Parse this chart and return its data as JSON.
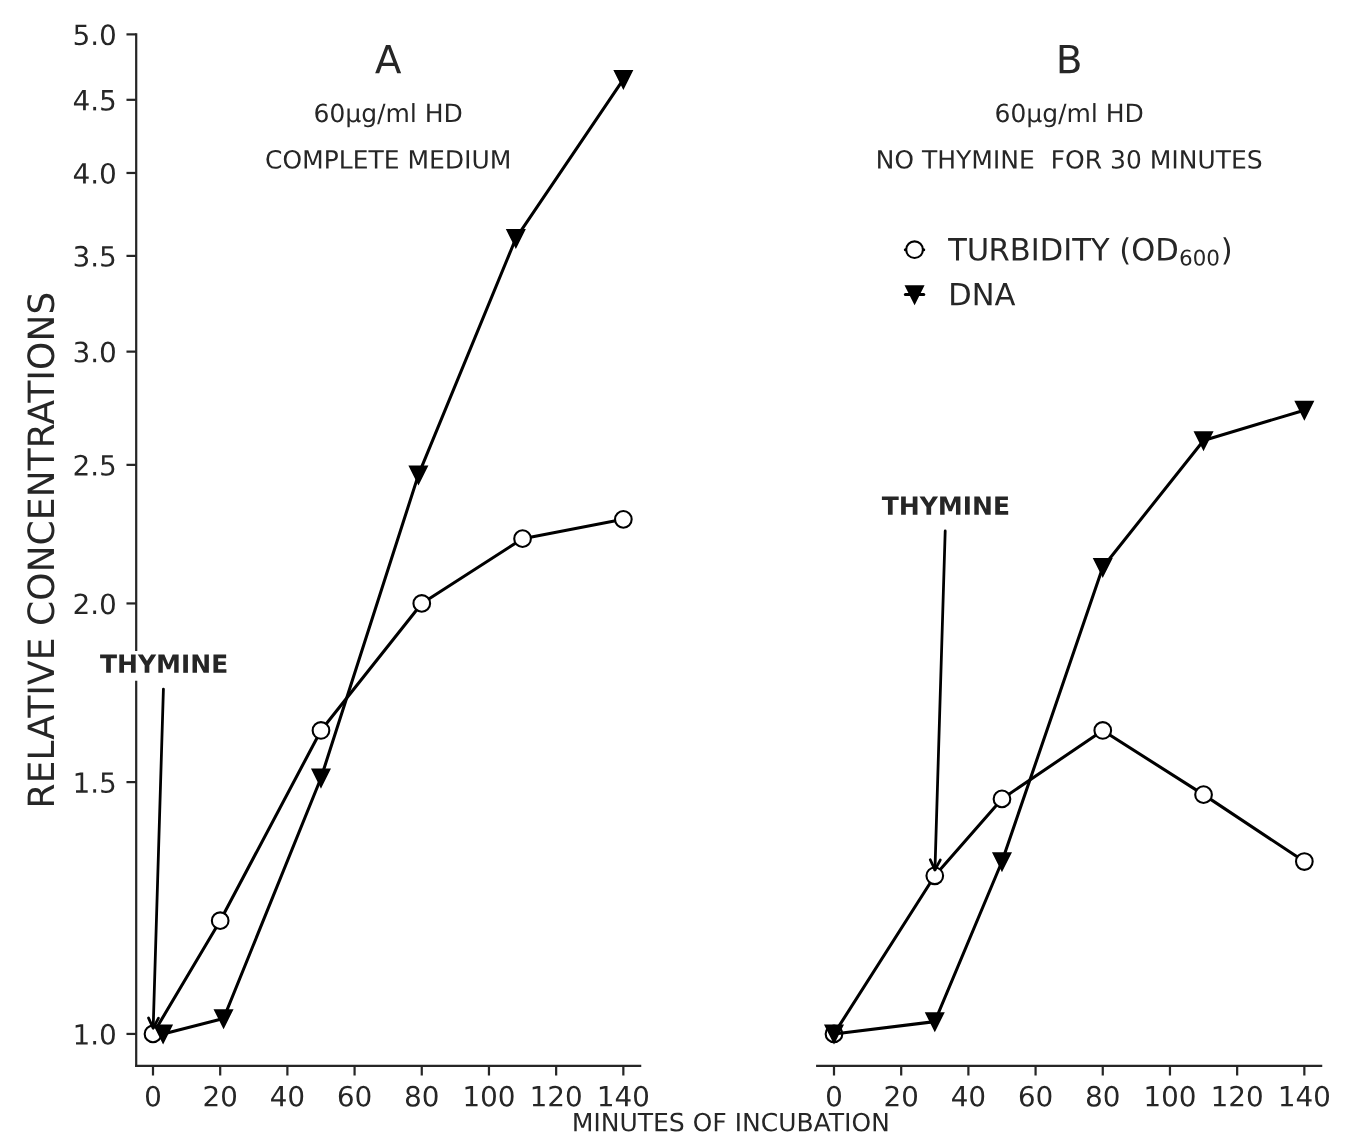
{
  "chart_data": [
    {
      "type": "line",
      "title": "A",
      "subtitle": "60μg/ml HD",
      "ylabel": "RELATIVE CONCENTRATIONS",
      "xlabel": "MINUTES OF INCUBATION",
      "log": "y",
      "grid": false,
      "legend": false,
      "xlim": [
        -5,
        145
      ],
      "xticks": [
        0,
        20,
        40,
        60,
        80,
        100,
        120,
        140
      ],
      "ylim": [
        0.95,
        5.0
      ],
      "yticks": [
        {
          "value": 1.0,
          "label": "1.0"
        },
        1.5,
        {
          "value": 2.0,
          "label": "2.0"
        },
        2.5,
        {
          "value": 3.0,
          "label": "3.0"
        },
        3.5,
        {
          "value": 4.0,
          "label": "4.0"
        },
        4.5,
        {
          "value": 5.0,
          "label": "5.0"
        }
      ],
      "series": [
        {
          "color": "#000000",
          "marker": "circle",
          "x": [
            0,
            20,
            50,
            80,
            110,
            140
          ],
          "values": [
            1.0,
            1.2,
            1.63,
            2.0,
            2.22,
            2.29
          ]
        },
        {
          "color": "#000000",
          "marker": "triangle",
          "x": [
            3,
            21,
            50,
            79,
            108,
            140
          ],
          "values": [
            1.0,
            1.025,
            1.51,
            2.46,
            3.6,
            4.65
          ]
        }
      ],
      "annotations": [
        "COMPLETE MEDIUM",
        {
          "text": "THYMINE",
          "x": 0,
          "y": 1.0
        }
      ]
    },
    {
      "type": "line",
      "title": "B",
      "subtitle": "60μg/ml HD",
      "log": "y",
      "grid": false,
      "legend": "top",
      "tick_labels": "x",
      "xlim": [
        -5,
        145
      ],
      "xticks": [
        0,
        20,
        40,
        60,
        80,
        100,
        120,
        140
      ],
      "ylim": [
        0.95,
        5.0
      ],
      "series": [
        {
          "name": "TURBIDITY (OD$_{600}$)",
          "color": "#000000",
          "marker": "circle",
          "x": [
            0,
            30,
            50,
            80,
            110,
            140
          ],
          "values": [
            1.0,
            1.29,
            1.46,
            1.63,
            1.47,
            1.32
          ]
        },
        {
          "name": "DNA",
          "color": "#000000",
          "marker": "triangle",
          "x": [
            0,
            30,
            50,
            80,
            110,
            140
          ],
          "values": [
            1.0,
            1.02,
            1.32,
            2.12,
            2.6,
            2.73
          ]
        }
      ],
      "annotations": [
        "NO THYMINE  FOR 30 MINUTES",
        {
          "text": "THYMINE",
          "x": 30,
          "y": 1.29
        }
      ]
    }
  ]
}
